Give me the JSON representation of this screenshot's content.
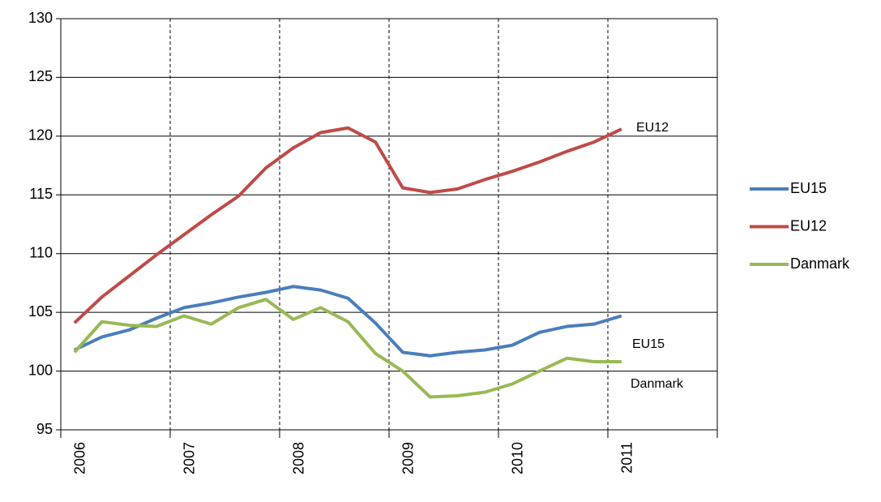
{
  "chart_data": {
    "type": "line",
    "categories": [
      "2006",
      null,
      null,
      null,
      "2007",
      null,
      null,
      null,
      "2008",
      null,
      null,
      null,
      "2009",
      null,
      null,
      null,
      "2010",
      null,
      null,
      null,
      "2011",
      null,
      null,
      null
    ],
    "series": [
      {
        "name": "EU15",
        "color": "#4a7ebb",
        "values": [
          101.8,
          102.9,
          103.5,
          104.5,
          105.4,
          105.8,
          106.3,
          106.7,
          107.2,
          106.9,
          106.2,
          104.1,
          101.6,
          101.3,
          101.6,
          101.8,
          102.2,
          103.3,
          103.8,
          104.0,
          104.7,
          null,
          null,
          null
        ]
      },
      {
        "name": "EU12",
        "color": "#be4b48",
        "values": [
          104.1,
          106.3,
          108.1,
          109.9,
          111.6,
          113.3,
          114.9,
          117.3,
          119.0,
          120.3,
          120.7,
          119.5,
          115.6,
          115.2,
          115.5,
          116.3,
          117.0,
          117.8,
          118.7,
          119.5,
          120.6,
          null,
          null,
          null
        ]
      },
      {
        "name": "Danmark",
        "color": "#98b954",
        "values": [
          101.6,
          104.2,
          103.9,
          103.8,
          104.7,
          104.0,
          105.4,
          106.1,
          104.4,
          105.4,
          104.2,
          101.5,
          100.0,
          97.8,
          97.9,
          98.2,
          98.9,
          100.0,
          101.1,
          100.8,
          100.8,
          null,
          null,
          null
        ]
      }
    ],
    "annotations": [
      "EU12",
      "EU15",
      "Danmark"
    ],
    "ylim": [
      95,
      130
    ],
    "yticks": [
      95,
      100,
      105,
      110,
      115,
      120,
      125,
      130
    ],
    "grid": true,
    "legend": "right"
  }
}
